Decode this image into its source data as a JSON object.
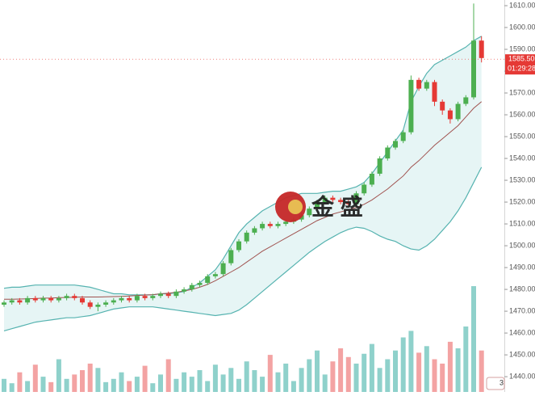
{
  "chart_data": {
    "type": "candlestick",
    "up_color": "#4caf50",
    "down_color": "#e53935",
    "volume_up_color": "#8fd1cb",
    "volume_down_color": "#f3a3a3",
    "band_line_color": "#56b3b0",
    "band_fill_color": "#e6f5f5",
    "middle_color": "#a0524f",
    "ylim": [
      1433,
      1612.6
    ],
    "yticks": [
      {
        "value": 1440,
        "label": "1440.00"
      },
      {
        "value": 1450,
        "label": "1450.00"
      },
      {
        "value": 1460,
        "label": "1460.00"
      },
      {
        "value": 1470,
        "label": "1470.00"
      },
      {
        "value": 1480,
        "label": "1480.00"
      },
      {
        "value": 1490,
        "label": "1490.00"
      },
      {
        "value": 1500,
        "label": "1500.00"
      },
      {
        "value": 1510,
        "label": "1510.00"
      },
      {
        "value": 1520,
        "label": "1520.00"
      },
      {
        "value": 1530,
        "label": "1530.00"
      },
      {
        "value": 1540,
        "label": "1540.00"
      },
      {
        "value": 1550,
        "label": "1550.00"
      },
      {
        "value": 1560,
        "label": "1560.00"
      },
      {
        "value": 1570,
        "label": "1570.00"
      },
      {
        "value": 1580,
        "label": "1580.00"
      },
      {
        "value": 1590,
        "label": "1590.00"
      },
      {
        "value": 1600,
        "label": "1600.00"
      },
      {
        "value": 1610,
        "label": "1610.00"
      }
    ],
    "last_price": {
      "value": 1585.5,
      "label": "1585.50"
    },
    "countdown": "01:29:28",
    "watermark": "金 盛",
    "badge": "3",
    "open": [
      1473,
      1474,
      1475,
      1474,
      1476,
      1475,
      1476,
      1475,
      1476,
      1477,
      1476,
      1474,
      1472,
      1473,
      1474,
      1475,
      1476,
      1475,
      1477,
      1476,
      1477,
      1478,
      1477,
      1479,
      1480,
      1482,
      1483,
      1486,
      1487,
      1492,
      1498,
      1502,
      1506,
      1508,
      1510,
      1509,
      1510,
      1511,
      1512,
      1514,
      1517,
      1520,
      1522,
      1521,
      1520,
      1519,
      1524,
      1528,
      1533,
      1540,
      1545,
      1548,
      1552,
      1576,
      1572,
      1575,
      1566,
      1562,
      1558,
      1565,
      1568,
      1594
    ],
    "high": [
      1475,
      1476,
      1476,
      1477,
      1477,
      1477,
      1477,
      1477,
      1478,
      1478,
      1477,
      1475,
      1474,
      1475,
      1476,
      1477,
      1477,
      1478,
      1478,
      1478,
      1479,
      1479,
      1480,
      1481,
      1483,
      1484,
      1487,
      1488,
      1493,
      1499,
      1503,
      1507,
      1509,
      1511,
      1511,
      1511,
      1512,
      1513,
      1515,
      1518,
      1521,
      1523,
      1523,
      1522,
      1521,
      1525,
      1529,
      1534,
      1541,
      1546,
      1549,
      1553,
      1578,
      1577,
      1576,
      1576,
      1567,
      1563,
      1566,
      1569,
      1611,
      1596
    ],
    "low": [
      1472,
      1473,
      1473,
      1473,
      1474,
      1474,
      1474,
      1474,
      1475,
      1475,
      1473,
      1471,
      1470,
      1472,
      1473,
      1474,
      1474,
      1474,
      1475,
      1475,
      1476,
      1476,
      1476,
      1478,
      1479,
      1481,
      1482,
      1485,
      1486,
      1491,
      1497,
      1501,
      1505,
      1507,
      1508,
      1508,
      1509,
      1510,
      1511,
      1513,
      1516,
      1519,
      1520,
      1519,
      1518,
      1518,
      1523,
      1527,
      1532,
      1539,
      1544,
      1547,
      1551,
      1571,
      1571,
      1564,
      1560,
      1556,
      1557,
      1564,
      1567,
      1584
    ],
    "close": [
      1474,
      1475,
      1474,
      1476,
      1475,
      1476,
      1475,
      1476,
      1477,
      1476,
      1474,
      1472,
      1473,
      1474,
      1475,
      1476,
      1475,
      1477,
      1476,
      1477,
      1478,
      1477,
      1479,
      1480,
      1482,
      1483,
      1486,
      1487,
      1492,
      1498,
      1502,
      1506,
      1508,
      1510,
      1509,
      1510,
      1511,
      1512,
      1514,
      1517,
      1520,
      1522,
      1521,
      1520,
      1519,
      1524,
      1528,
      1533,
      1540,
      1545,
      1548,
      1552,
      1576,
      1572,
      1575,
      1566,
      1562,
      1558,
      1565,
      1568,
      1594,
      1586
    ],
    "bollinger": {
      "upper": [
        1480.5,
        1481,
        1481,
        1481.5,
        1482,
        1482,
        1482,
        1482,
        1482,
        1482,
        1481.5,
        1481,
        1480,
        1479,
        1478,
        1478,
        1477.5,
        1477.5,
        1477.5,
        1477.5,
        1478,
        1478,
        1478.5,
        1479,
        1481,
        1483,
        1486,
        1489,
        1494,
        1500,
        1506,
        1510,
        1513,
        1516,
        1518,
        1520,
        1522,
        1523,
        1524,
        1524,
        1524,
        1524.5,
        1525,
        1525,
        1526,
        1527,
        1529,
        1533,
        1538,
        1543,
        1548,
        1553,
        1566,
        1573,
        1579,
        1583,
        1585,
        1587,
        1589,
        1591,
        1594,
        1596
      ],
      "middle": [
        1475.5,
        1475.5,
        1475.6,
        1475.7,
        1475.8,
        1476,
        1476,
        1476.2,
        1476.3,
        1476.4,
        1476.5,
        1476.5,
        1476.5,
        1476.6,
        1476.7,
        1476.8,
        1477,
        1477.2,
        1477.4,
        1477.6,
        1478,
        1478.3,
        1478.7,
        1479.3,
        1480,
        1481,
        1482.3,
        1484,
        1486,
        1488,
        1490,
        1492.5,
        1495,
        1497.5,
        1499.5,
        1501.5,
        1503.5,
        1505.5,
        1507.5,
        1509.5,
        1511.5,
        1513,
        1514.5,
        1515.5,
        1516.5,
        1517.5,
        1519,
        1521,
        1523.5,
        1526,
        1529,
        1532,
        1536,
        1539,
        1542.5,
        1546,
        1549,
        1552,
        1555,
        1559,
        1563,
        1566
      ],
      "lower": [
        1461,
        1462,
        1463,
        1464,
        1465,
        1465.5,
        1466,
        1466.5,
        1467,
        1467,
        1467.5,
        1468,
        1469,
        1470,
        1471,
        1471.5,
        1472,
        1472,
        1472,
        1472,
        1471.5,
        1471,
        1470.5,
        1470,
        1469.5,
        1469,
        1468.5,
        1468,
        1468.5,
        1469,
        1470.5,
        1473,
        1476,
        1479,
        1482,
        1485,
        1488,
        1491,
        1494,
        1497,
        1499.5,
        1502,
        1504,
        1506,
        1507.5,
        1508.5,
        1508,
        1506.5,
        1504.5,
        1503,
        1502,
        1500,
        1498.5,
        1498,
        1500,
        1503,
        1507,
        1511,
        1516,
        1522,
        1529,
        1536
      ]
    },
    "volume": [
      12,
      8,
      18,
      10,
      25,
      14,
      9,
      30,
      12,
      16,
      20,
      26,
      22,
      9,
      12,
      18,
      10,
      14,
      24,
      8,
      16,
      30,
      12,
      18,
      14,
      20,
      10,
      25,
      16,
      22,
      12,
      28,
      20,
      14,
      34,
      18,
      26,
      10,
      22,
      30,
      38,
      16,
      28,
      40,
      32,
      26,
      35,
      44,
      22,
      30,
      38,
      50,
      56,
      36,
      42,
      30,
      26,
      46,
      40,
      60,
      97,
      38
    ],
    "volume_lim": [
      0,
      100
    ]
  }
}
